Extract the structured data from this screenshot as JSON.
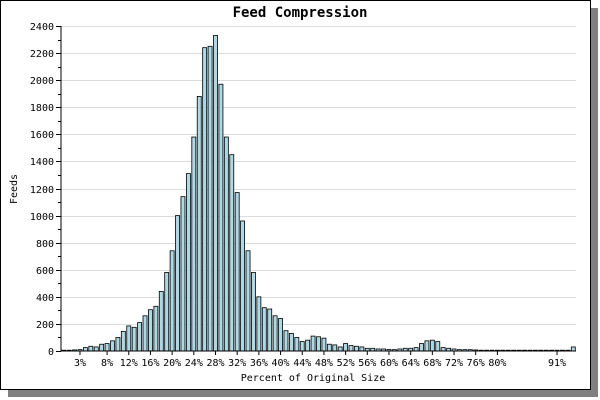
{
  "chart_data": {
    "type": "bar",
    "title": "Feed Compression",
    "xlabel": "Percent of Original Size",
    "ylabel": "Feeds",
    "ylim": [
      0,
      2400
    ],
    "yticks": [
      0,
      200,
      400,
      600,
      800,
      1000,
      1200,
      1400,
      1600,
      1800,
      2000,
      2200,
      2400
    ],
    "grid": true,
    "legend": "none",
    "x_tick_labels": [
      "3%",
      "8%",
      "12%",
      "16%",
      "20%",
      "24%",
      "28%",
      "32%",
      "36%",
      "40%",
      "44%",
      "48%",
      "52%",
      "56%",
      "60%",
      "64%",
      "68%",
      "72%",
      "76%",
      "80%",
      "91%"
    ],
    "bar_color": "#add8e6",
    "x": [
      "0%",
      "1%",
      "2%",
      "3%",
      "4%",
      "5%",
      "6%",
      "7%",
      "8%",
      "9%",
      "10%",
      "11%",
      "12%",
      "13%",
      "14%",
      "15%",
      "16%",
      "17%",
      "18%",
      "19%",
      "20%",
      "21%",
      "22%",
      "23%",
      "24%",
      "25%",
      "26%",
      "27%",
      "28%",
      "29%",
      "30%",
      "31%",
      "32%",
      "33%",
      "34%",
      "35%",
      "36%",
      "37%",
      "38%",
      "39%",
      "40%",
      "41%",
      "42%",
      "43%",
      "44%",
      "45%",
      "46%",
      "47%",
      "48%",
      "49%",
      "50%",
      "51%",
      "52%",
      "53%",
      "54%",
      "55%",
      "56%",
      "57%",
      "58%",
      "59%",
      "60%",
      "61%",
      "62%",
      "63%",
      "64%",
      "65%",
      "66%",
      "67%",
      "68%",
      "69%",
      "70%",
      "71%",
      "72%",
      "73%",
      "74%",
      "75%",
      "76%",
      "77%",
      "78%",
      "79%",
      "80%",
      "81%",
      "82%",
      "83%",
      "84%",
      "85%",
      "86%",
      "87%",
      "88%",
      "89%",
      "90%",
      "91%",
      "92%",
      "93%",
      "94%"
    ],
    "values": [
      2,
      5,
      8,
      10,
      25,
      35,
      30,
      50,
      55,
      75,
      100,
      145,
      185,
      175,
      210,
      260,
      305,
      330,
      440,
      580,
      740,
      1000,
      1140,
      1310,
      1580,
      1880,
      2240,
      2250,
      2330,
      1970,
      1580,
      1450,
      1170,
      960,
      740,
      580,
      400,
      320,
      310,
      260,
      240,
      150,
      130,
      100,
      70,
      80,
      110,
      105,
      95,
      50,
      45,
      30,
      55,
      40,
      35,
      30,
      20,
      20,
      15,
      15,
      12,
      10,
      15,
      20,
      20,
      25,
      55,
      75,
      80,
      70,
      25,
      20,
      15,
      10,
      10,
      10,
      8,
      5,
      5,
      5,
      5,
      3,
      3,
      2,
      2,
      2,
      2,
      2,
      2,
      2,
      2,
      2,
      2,
      2,
      30
    ]
  }
}
